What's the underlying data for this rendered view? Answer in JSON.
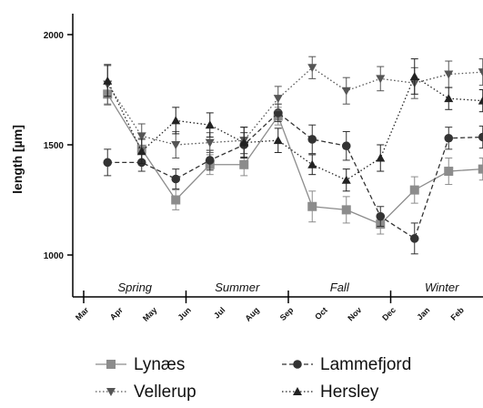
{
  "chart_data": {
    "type": "line",
    "ylabel": "length [µm]",
    "xlabel": "",
    "ylim": [
      800,
      2100
    ],
    "yticks": [
      "2000",
      "1500",
      "1000"
    ],
    "months": [
      "Mar",
      "Apr",
      "May",
      "Jun",
      "Jul",
      "Aug",
      "Sep",
      "Oct",
      "Nov",
      "Dec",
      "Jan",
      "Feb"
    ],
    "seasons": [
      "Spring",
      "Summer",
      "Fall",
      "Winter"
    ],
    "legend_position": "bottom",
    "x": [
      0.7,
      1.7,
      2.7,
      3.7,
      4.7,
      5.7,
      6.7,
      7.7,
      8.7,
      9.7,
      10.7,
      11.7
    ],
    "series": [
      {
        "name": "Lynæs",
        "marker": "square",
        "line": "solid",
        "color": "#8c8c8c",
        "values": [
          1730,
          1480,
          1250,
          1410,
          1410,
          1630,
          1220,
          1205,
          1140,
          1295,
          1380,
          1390
        ],
        "errors": [
          50,
          50,
          45,
          45,
          50,
          40,
          70,
          60,
          45,
          60,
          60,
          50
        ]
      },
      {
        "name": "Lammefjord",
        "marker": "circle",
        "line": "dashed",
        "color": "#333333",
        "values": [
          1420,
          1420,
          1345,
          1430,
          1500,
          1645,
          1525,
          1495,
          1175,
          1075,
          1530,
          1535
        ],
        "errors": [
          60,
          40,
          45,
          45,
          55,
          40,
          65,
          65,
          45,
          70,
          50,
          50
        ]
      },
      {
        "name": "Vellerup",
        "marker": "triangle-down",
        "line": "dotted",
        "color": "#555555",
        "values": [
          1775,
          1540,
          1500,
          1510,
          1520,
          1710,
          1850,
          1745,
          1800,
          1780,
          1820,
          1830
        ],
        "errors": [
          90,
          55,
          60,
          45,
          60,
          55,
          50,
          60,
          55,
          70,
          60,
          60
        ]
      },
      {
        "name": "Hersley",
        "marker": "triangle-up",
        "line": "dotted",
        "color": "#222222",
        "values": [
          1790,
          1470,
          1610,
          1590,
          1510,
          1520,
          1410,
          1340,
          1440,
          1810,
          1710,
          1700
        ],
        "errors": [
          70,
          55,
          60,
          55,
          70,
          55,
          45,
          50,
          60,
          80,
          50,
          50
        ]
      }
    ]
  }
}
